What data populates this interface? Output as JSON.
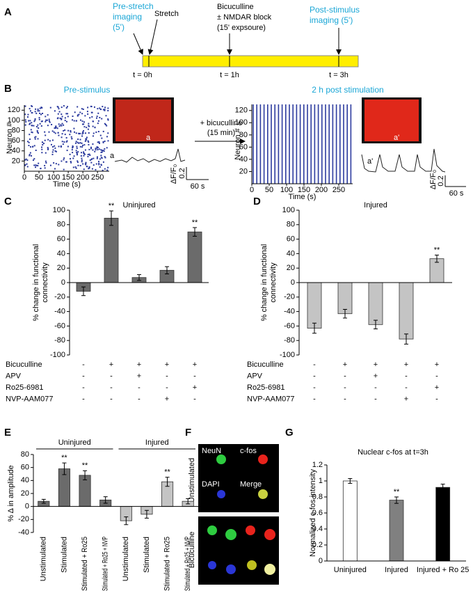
{
  "panels": [
    "A",
    "B",
    "C",
    "D",
    "E",
    "F",
    "G"
  ],
  "timeline": {
    "events": [
      [
        "Pre-stretch",
        "imaging",
        "(5')"
      ],
      [
        "Stretch"
      ],
      [
        "Bicuculline",
        "± NMDAR block",
        "(15' expsoure)"
      ],
      [
        "Post-stimulus",
        "imaging (5')"
      ]
    ],
    "ticks": [
      "t = 0h",
      "t = 1h",
      "t = 3h"
    ]
  },
  "figure_b": {
    "arrow_label": [
      "+ bicuculline",
      "(15 min)"
    ],
    "traces": [
      "a",
      "a'"
    ],
    "scale": {
      "y": "ΔF/F₀",
      "y_value": "0.2",
      "x": "60 s"
    }
  },
  "figure_f": {
    "channels": [
      "NeuN",
      "c-fos",
      "DAPI",
      "Merge"
    ],
    "rows": [
      "Unstimulated",
      "Bicuculline"
    ]
  },
  "chart_data": [
    {
      "type": "raster",
      "title": "Pre-stimulus",
      "xlabel": "Time (s)",
      "ylabel": "Neuron #",
      "xlim": [
        0,
        290
      ],
      "ylim": [
        0,
        130
      ],
      "xticks": [
        0,
        50,
        100,
        150,
        200,
        250
      ],
      "yticks": [
        20,
        40,
        60,
        80,
        100,
        120
      ]
    },
    {
      "type": "raster",
      "title": "2 h post stimulation",
      "xlabel": "Time (s)",
      "ylabel": "Neuron #",
      "xlim": [
        0,
        290
      ],
      "ylim": [
        0,
        130
      ],
      "xticks": [
        0,
        50,
        100,
        150,
        200,
        250
      ],
      "yticks": [
        20,
        40,
        60,
        80,
        100,
        120
      ]
    },
    {
      "type": "bar",
      "title": "Uninjured",
      "ylabel": [
        "% change in functional",
        "connectivity"
      ],
      "ylim": [
        -100,
        100
      ],
      "yticks": [
        -100,
        -80,
        -60,
        -40,
        -20,
        0,
        20,
        40,
        60,
        80,
        100
      ],
      "color": "#6b6b6b",
      "values": [
        -12,
        89,
        7,
        17,
        70
      ],
      "errors": [
        6,
        10,
        4,
        5,
        6
      ],
      "significance": [
        null,
        "**",
        null,
        null,
        "**"
      ],
      "conditions": [
        {
          "label": "Bicuculline",
          "values": [
            "-",
            "+",
            "+",
            "+",
            "+"
          ]
        },
        {
          "label": "APV",
          "values": [
            "-",
            "-",
            "+",
            "-",
            "-"
          ]
        },
        {
          "label": "Ro25-6981",
          "values": [
            "-",
            "-",
            "-",
            "-",
            "+"
          ]
        },
        {
          "label": "NVP-AAM077",
          "values": [
            "-",
            "-",
            "-",
            "+",
            "-"
          ]
        }
      ]
    },
    {
      "type": "bar",
      "title": "Injured",
      "ylabel": [
        "% change in functional",
        "connectivity"
      ],
      "ylim": [
        -100,
        100
      ],
      "yticks": [
        -100,
        -80,
        -60,
        -40,
        -20,
        0,
        20,
        40,
        60,
        80,
        100
      ],
      "color": "#c4c4c4",
      "values": [
        -63,
        -43,
        -58,
        -78,
        33
      ],
      "errors": [
        7,
        6,
        6,
        7,
        5
      ],
      "significance": [
        null,
        null,
        null,
        null,
        "**"
      ],
      "conditions": [
        {
          "label": "Bicuculline",
          "values": [
            "-",
            "+",
            "+",
            "+",
            "+"
          ]
        },
        {
          "label": "APV",
          "values": [
            "-",
            "-",
            "+",
            "-",
            "-"
          ]
        },
        {
          "label": "Ro25-6981",
          "values": [
            "-",
            "-",
            "-",
            "-",
            "+"
          ]
        },
        {
          "label": "NVP-AAM077",
          "values": [
            "-",
            "-",
            "-",
            "+",
            "-"
          ]
        }
      ]
    },
    {
      "type": "bar",
      "ylabel": [
        "% Δ in amplitude"
      ],
      "groups": [
        "Uninjured",
        "Injured"
      ],
      "ylim": [
        -40,
        80
      ],
      "yticks": [
        -40,
        -20,
        0,
        20,
        40,
        60,
        80
      ],
      "categories": [
        "Unstimulated",
        "Stimulated",
        "Stimulated + Ro25",
        "Stimulated + Ro25 + NVP",
        "Unstimulated",
        "Stimulated",
        "Stimulated + Ro25",
        "Stimulated + Ro25 + NVP"
      ],
      "colors": [
        "#6b6b6b",
        "#6b6b6b",
        "#6b6b6b",
        "#6b6b6b",
        "#c4c4c4",
        "#c4c4c4",
        "#c4c4c4",
        "#c4c4c4"
      ],
      "values": [
        8,
        58,
        48,
        10,
        -22,
        -12,
        38,
        8
      ],
      "errors": [
        3,
        9,
        7,
        5,
        6,
        6,
        7,
        4
      ],
      "significance": [
        null,
        "**",
        "**",
        null,
        null,
        null,
        "**",
        null
      ]
    },
    {
      "type": "bar",
      "title": "Nuclear c-fos at t=3h",
      "ylabel": [
        "Normalized c-fos intensity"
      ],
      "ylim": [
        0,
        1.2
      ],
      "yticks": [
        0,
        0.2,
        0.4,
        0.6,
        0.8,
        1,
        1.2
      ],
      "categories": [
        "Uninjured",
        "Injured",
        "Injured + Ro 25"
      ],
      "colors": [
        "#ffffff",
        "#808080",
        "#000000"
      ],
      "values": [
        1,
        0.76,
        0.92
      ],
      "errors": [
        0.03,
        0.04,
        0.04
      ],
      "significance": [
        null,
        "**",
        null
      ]
    }
  ]
}
